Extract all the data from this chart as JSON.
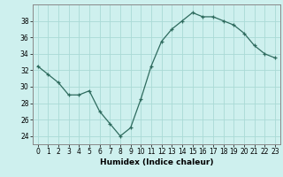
{
  "x": [
    0,
    1,
    2,
    3,
    4,
    5,
    6,
    7,
    8,
    9,
    10,
    11,
    12,
    13,
    14,
    15,
    16,
    17,
    18,
    19,
    20,
    21,
    22,
    23
  ],
  "y": [
    32.5,
    31.5,
    30.5,
    29.0,
    29.0,
    29.5,
    27.0,
    25.5,
    24.0,
    25.0,
    28.5,
    32.5,
    35.5,
    37.0,
    38.0,
    39.0,
    38.5,
    38.5,
    38.0,
    37.5,
    36.5,
    35.0,
    34.0,
    33.5
  ],
  "line_color": "#2e6b5e",
  "marker": "+",
  "marker_size": 3,
  "background_color": "#cef0ee",
  "grid_color": "#aadad6",
  "xlabel": "Humidex (Indice chaleur)",
  "ylim": [
    23,
    40
  ],
  "xlim": [
    -0.5,
    23.5
  ],
  "yticks": [
    24,
    26,
    28,
    30,
    32,
    34,
    36,
    38
  ],
  "xticks": [
    0,
    1,
    2,
    3,
    4,
    5,
    6,
    7,
    8,
    9,
    10,
    11,
    12,
    13,
    14,
    15,
    16,
    17,
    18,
    19,
    20,
    21,
    22,
    23
  ],
  "xlabel_fontsize": 6.5,
  "tick_fontsize": 5.5,
  "linewidth": 0.9,
  "markeredgewidth": 0.9
}
